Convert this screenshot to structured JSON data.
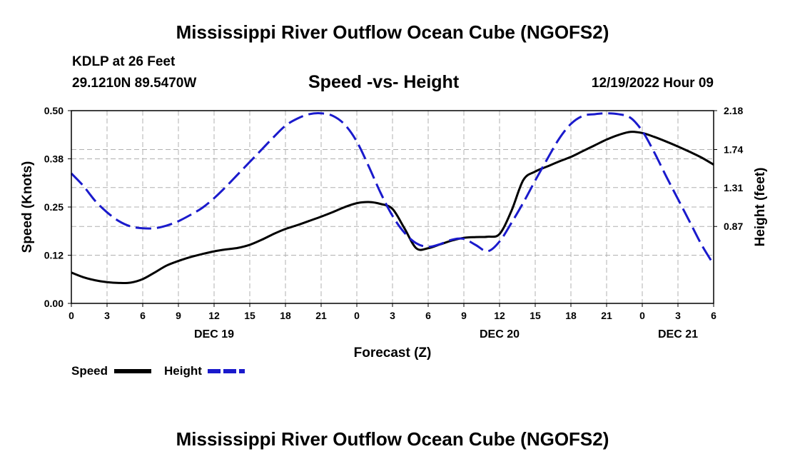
{
  "header": {
    "title": "Mississippi River Outflow Ocean Cube (NGOFS2)",
    "station": "KDLP at 26 Feet",
    "coords": "29.1210N  89.5470W",
    "chart_subtitle": "Speed -vs- Height",
    "timestamp": "12/19/2022 Hour 09"
  },
  "footer": {
    "title": "Mississippi River Outflow Ocean Cube (NGOFS2)"
  },
  "legend": {
    "speed_label": "Speed",
    "height_label": "Height"
  },
  "colors": {
    "speed": "#000000",
    "height": "#1a1acc",
    "grid": "#b0b0b0"
  },
  "chart_data": {
    "type": "line",
    "xlabel": "Forecast (Z)",
    "ylabel_left": "Speed (Knots)",
    "ylabel_right": "Height (feet)",
    "x_range_hours": [
      0,
      54
    ],
    "x_ticks": [
      {
        "h": 0,
        "label": "0"
      },
      {
        "h": 3,
        "label": "3"
      },
      {
        "h": 6,
        "label": "6"
      },
      {
        "h": 9,
        "label": "9"
      },
      {
        "h": 12,
        "label": "12"
      },
      {
        "h": 15,
        "label": "15"
      },
      {
        "h": 18,
        "label": "18"
      },
      {
        "h": 21,
        "label": "21"
      },
      {
        "h": 24,
        "label": "0"
      },
      {
        "h": 27,
        "label": "3"
      },
      {
        "h": 30,
        "label": "6"
      },
      {
        "h": 33,
        "label": "9"
      },
      {
        "h": 36,
        "label": "12"
      },
      {
        "h": 39,
        "label": "15"
      },
      {
        "h": 42,
        "label": "18"
      },
      {
        "h": 45,
        "label": "21"
      },
      {
        "h": 48,
        "label": "0"
      },
      {
        "h": 51,
        "label": "3"
      },
      {
        "h": 54,
        "label": "6"
      }
    ],
    "date_labels": [
      {
        "h": 12,
        "label": "DEC 19"
      },
      {
        "h": 36,
        "label": "DEC 20"
      },
      {
        "h": 51,
        "label": "DEC 21"
      }
    ],
    "left_axis": {
      "range": [
        0,
        0.5
      ],
      "ticks": [
        {
          "v": 0.0,
          "label": "0.00"
        },
        {
          "v": 0.125,
          "label": "0.12"
        },
        {
          "v": 0.25,
          "label": "0.25"
        },
        {
          "v": 0.375,
          "label": "0.38"
        },
        {
          "v": 0.5,
          "label": "0.50"
        }
      ]
    },
    "right_axis": {
      "range": [
        0.0,
        2.18
      ],
      "ticks": [
        {
          "v": 0.87,
          "label": "0.87"
        },
        {
          "v": 1.31,
          "label": "1.31"
        },
        {
          "v": 1.74,
          "label": "1.74"
        },
        {
          "v": 2.18,
          "label": "2.18"
        }
      ]
    },
    "series": [
      {
        "name": "Speed",
        "axis": "left",
        "style": "solid",
        "x": [
          0,
          1,
          2,
          3,
          4,
          5,
          6,
          7,
          8,
          9,
          10,
          11,
          12,
          13,
          14,
          15,
          16,
          17,
          18,
          19,
          20,
          21,
          22,
          23,
          24,
          25,
          26,
          27,
          28,
          29,
          30,
          31,
          32,
          33,
          34,
          35,
          36,
          37,
          38,
          39,
          40,
          41,
          42,
          43,
          44,
          45,
          46,
          47,
          48,
          49,
          50,
          51,
          52,
          53,
          54
        ],
        "values": [
          0.08,
          0.068,
          0.06,
          0.055,
          0.053,
          0.054,
          0.063,
          0.08,
          0.098,
          0.11,
          0.12,
          0.128,
          0.135,
          0.14,
          0.144,
          0.152,
          0.165,
          0.18,
          0.193,
          0.203,
          0.214,
          0.225,
          0.237,
          0.25,
          0.26,
          0.263,
          0.258,
          0.245,
          0.195,
          0.143,
          0.143,
          0.153,
          0.163,
          0.17,
          0.172,
          0.173,
          0.18,
          0.24,
          0.32,
          0.342,
          0.355,
          0.368,
          0.38,
          0.395,
          0.41,
          0.425,
          0.437,
          0.445,
          0.442,
          0.432,
          0.42,
          0.407,
          0.393,
          0.378,
          0.36
        ]
      },
      {
        "name": "Height",
        "axis": "right",
        "style": "dashed",
        "x": [
          0,
          1,
          2,
          3,
          4,
          5,
          6,
          7,
          8,
          9,
          10,
          11,
          12,
          13,
          14,
          15,
          16,
          17,
          18,
          19,
          20,
          21,
          22,
          23,
          24,
          25,
          26,
          27,
          28,
          29,
          30,
          31,
          32,
          33,
          34,
          35,
          36,
          37,
          38,
          39,
          40,
          41,
          42,
          43,
          44,
          45,
          46,
          47,
          48,
          49,
          50,
          51,
          52,
          53,
          54
        ],
        "values": [
          1.47,
          1.33,
          1.16,
          1.03,
          0.93,
          0.87,
          0.85,
          0.85,
          0.88,
          0.93,
          1.0,
          1.08,
          1.19,
          1.32,
          1.46,
          1.6,
          1.74,
          1.88,
          2.01,
          2.09,
          2.14,
          2.15,
          2.12,
          2.02,
          1.83,
          1.55,
          1.25,
          0.99,
          0.8,
          0.68,
          0.64,
          0.67,
          0.72,
          0.73,
          0.66,
          0.59,
          0.7,
          0.91,
          1.14,
          1.39,
          1.63,
          1.86,
          2.03,
          2.12,
          2.14,
          2.15,
          2.14,
          2.1,
          1.95,
          1.71,
          1.44,
          1.18,
          0.92,
          0.66,
          0.44
        ]
      }
    ]
  }
}
